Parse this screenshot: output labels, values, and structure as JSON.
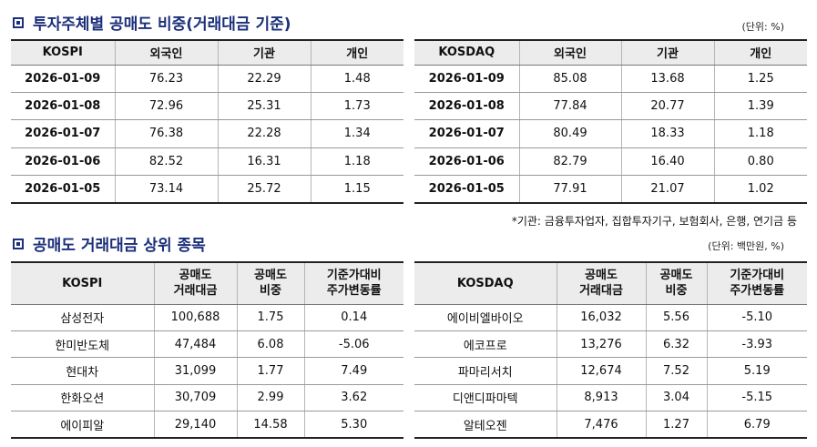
{
  "investor_section": {
    "title": "투자주체별 공매도 비중(거래대금 기준)",
    "unit": "(단위: %)",
    "note": "*기관: 금융투자업자, 집합투자기구, 보험회사, 은행, 연기금 등",
    "kospi": {
      "headers": [
        "KOSPI",
        "외국인",
        "기관",
        "개인"
      ],
      "rows": [
        [
          "2026-01-09",
          "76.23",
          "22.29",
          "1.48"
        ],
        [
          "2026-01-08",
          "72.96",
          "25.31",
          "1.73"
        ],
        [
          "2026-01-07",
          "76.38",
          "22.28",
          "1.34"
        ],
        [
          "2026-01-06",
          "82.52",
          "16.31",
          "1.18"
        ],
        [
          "2026-01-05",
          "73.14",
          "25.72",
          "1.15"
        ]
      ]
    },
    "kosdaq": {
      "headers": [
        "KOSDAQ",
        "외국인",
        "기관",
        "개인"
      ],
      "rows": [
        [
          "2026-01-09",
          "85.08",
          "13.68",
          "1.25"
        ],
        [
          "2026-01-08",
          "77.84",
          "20.77",
          "1.39"
        ],
        [
          "2026-01-07",
          "80.49",
          "18.33",
          "1.18"
        ],
        [
          "2026-01-06",
          "82.79",
          "16.40",
          "0.80"
        ],
        [
          "2026-01-05",
          "77.91",
          "21.07",
          "1.02"
        ]
      ]
    }
  },
  "top_section": {
    "title": "공매도 거래대금 상위 종목",
    "unit": "(단위: 백만원, %)",
    "kospi": {
      "headers": [
        "KOSPI",
        "공매도\n거래대금",
        "공매도\n비중",
        "기준가대비\n주가변동률"
      ],
      "rows": [
        [
          "삼성전자",
          "100,688",
          "1.75",
          "0.14"
        ],
        [
          "한미반도체",
          "47,484",
          "6.08",
          "-5.06"
        ],
        [
          "현대차",
          "31,099",
          "1.77",
          "7.49"
        ],
        [
          "한화오션",
          "30,709",
          "2.99",
          "3.62"
        ],
        [
          "에이피알",
          "29,140",
          "14.58",
          "5.30"
        ]
      ]
    },
    "kosdaq": {
      "headers": [
        "KOSDAQ",
        "공매도\n거래대금",
        "공매도\n비중",
        "기준가대비\n주가변동률"
      ],
      "rows": [
        [
          "에이비엘바이오",
          "16,032",
          "5.56",
          "-5.10"
        ],
        [
          "에코프로",
          "13,276",
          "6.32",
          "-3.93"
        ],
        [
          "파마리서치",
          "12,674",
          "7.52",
          "5.19"
        ],
        [
          "디앤디파마텍",
          "8,913",
          "3.04",
          "-5.15"
        ],
        [
          "알테오젠",
          "7,476",
          "1.27",
          "6.79"
        ]
      ]
    }
  },
  "colors": {
    "title": "#1b2f7a",
    "header_bg": "#ececec"
  }
}
